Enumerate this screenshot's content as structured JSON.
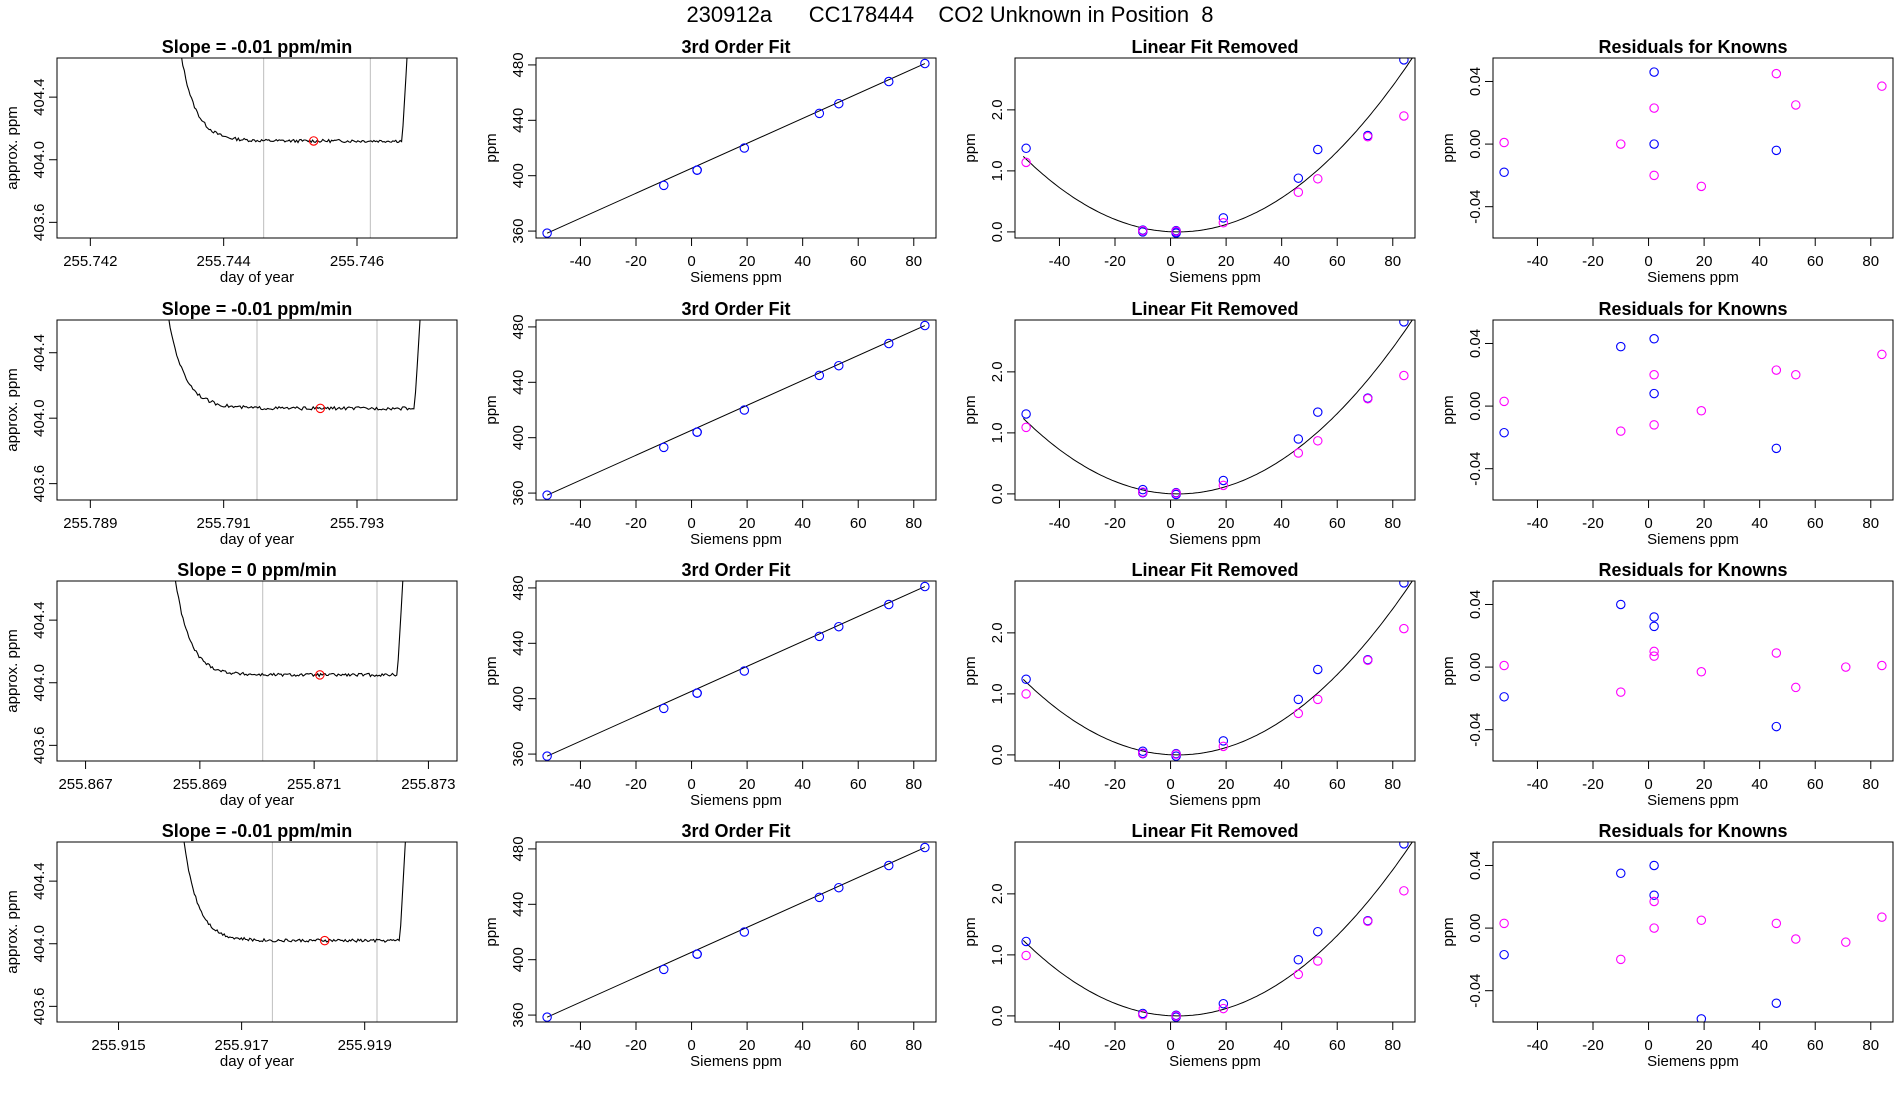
{
  "page": {
    "title": "230912a      CC178444    CO2 Unknown in Position  8"
  },
  "colors": {
    "line": "#000000",
    "known": "#0000ff",
    "unknown": "#ff00ff",
    "mean": "#ff0000",
    "bound": "#bebebe"
  },
  "chart_data": [
    {
      "type": "line",
      "title": "Slope =  -0.01  ppm/min",
      "xlabel": "day of year",
      "ylabel": "approx. ppm",
      "xlim": [
        255.7415,
        255.7475
      ],
      "ylim": [
        403.5,
        404.65
      ],
      "xticks": [
        "255.742",
        "255.744",
        "255.746"
      ],
      "yticks": [
        "403.6",
        "404.0",
        "404.4"
      ],
      "vlines": [
        255.7446,
        255.7462
      ],
      "mean_point": [
        255.74535,
        404.12
      ],
      "trace": {
        "start": 255.7433,
        "end": 255.7468,
        "plateau": 404.12,
        "start_value": 404.65
      }
    },
    {
      "type": "scatter",
      "title": "3rd Order Fit",
      "xlabel": "Siemens ppm",
      "ylabel": "ppm",
      "xlim": [
        -56,
        88
      ],
      "ylim": [
        355,
        485
      ],
      "xticks": [
        "-40",
        "-20",
        "0",
        "20",
        "40",
        "60",
        "80"
      ],
      "yticks": [
        "360",
        "400",
        "440",
        "480"
      ],
      "points_x": [
        -52,
        -10,
        2,
        2,
        19,
        46,
        53,
        71,
        84
      ],
      "points_y": [
        358.5,
        393,
        404,
        404,
        420,
        445,
        452,
        468,
        481
      ],
      "fit_line": [
        [
          -52,
          358.5
        ],
        [
          84,
          481
        ]
      ]
    },
    {
      "type": "scatter",
      "title": "Linear Fit Removed",
      "xlabel": "Siemens ppm",
      "ylabel": "ppm",
      "xlim": [
        -56,
        88
      ],
      "ylim": [
        -0.1,
        2.85
      ],
      "xticks": [
        "-40",
        "-20",
        "0",
        "20",
        "40",
        "60",
        "80"
      ],
      "yticks": [
        "0.0",
        "1.0",
        "2.0"
      ],
      "knowns_x": [
        -52,
        -10,
        -10,
        2,
        2,
        2,
        19,
        46,
        53,
        71,
        84
      ],
      "knowns_y": [
        1.37,
        0.03,
        0.0,
        0.02,
        0.0,
        -0.02,
        0.23,
        0.88,
        1.35,
        1.58,
        2.82
      ],
      "unknowns_x": [
        -52,
        -10,
        2,
        19,
        46,
        53,
        71,
        84
      ],
      "unknowns_y": [
        1.14,
        0.02,
        0.01,
        0.15,
        0.65,
        0.87,
        1.56,
        1.9
      ],
      "curve": {
        "a": 0.0004,
        "b": -0.0005,
        "c": 0.0
      }
    },
    {
      "type": "scatter",
      "title": "Residuals for Knowns",
      "xlabel": "Siemens ppm",
      "ylabel": "ppm",
      "xlim": [
        -56,
        88
      ],
      "ylim": [
        -0.06,
        0.055
      ],
      "xticks": [
        "-40",
        "-20",
        "0",
        "20",
        "40",
        "60",
        "80"
      ],
      "yticks": [
        "-0.04",
        "0.00",
        "0.04"
      ],
      "knowns_x": [
        -52,
        2,
        2,
        46
      ],
      "knowns_y": [
        -0.018,
        0.046,
        0.0,
        -0.004
      ],
      "unknowns_x": [
        -52,
        -10,
        2,
        2,
        19,
        46,
        53,
        84
      ],
      "unknowns_y": [
        0.001,
        0.0,
        0.023,
        -0.02,
        -0.027,
        0.045,
        0.025,
        0.037
      ]
    },
    {
      "type": "line",
      "title": "Slope =  -0.01  ppm/min",
      "xlabel": "day of year",
      "ylabel": "approx. ppm",
      "xlim": [
        255.7885,
        255.7945
      ],
      "ylim": [
        403.5,
        404.6
      ],
      "xticks": [
        "255.789",
        "255.791",
        "255.793"
      ],
      "yticks": [
        "403.6",
        "404.0",
        "404.4"
      ],
      "vlines": [
        255.7915,
        255.7933
      ],
      "mean_point": [
        255.79245,
        404.06
      ],
      "trace": {
        "start": 255.7901,
        "end": 255.794,
        "plateau": 404.06,
        "start_value": 404.6
      }
    },
    {
      "type": "scatter",
      "title": "3rd Order Fit",
      "xlabel": "Siemens ppm",
      "ylabel": "ppm",
      "xlim": [
        -56,
        88
      ],
      "ylim": [
        355,
        485
      ],
      "xticks": [
        "-40",
        "-20",
        "0",
        "20",
        "40",
        "60",
        "80"
      ],
      "yticks": [
        "360",
        "400",
        "440",
        "480"
      ],
      "points_x": [
        -52,
        -10,
        2,
        2,
        19,
        46,
        53,
        71,
        84
      ],
      "points_y": [
        358.5,
        393,
        404,
        404,
        420,
        445,
        452,
        468,
        481
      ],
      "fit_line": [
        [
          -52,
          358.5
        ],
        [
          84,
          481
        ]
      ]
    },
    {
      "type": "scatter",
      "title": "Linear Fit Removed",
      "xlabel": "Siemens ppm",
      "ylabel": "ppm",
      "xlim": [
        -56,
        88
      ],
      "ylim": [
        -0.1,
        2.85
      ],
      "xticks": [
        "-40",
        "-20",
        "0",
        "20",
        "40",
        "60",
        "80"
      ],
      "yticks": [
        "0.0",
        "1.0",
        "2.0"
      ],
      "knowns_x": [
        -52,
        -10,
        -10,
        2,
        2,
        19,
        46,
        53,
        71,
        84
      ],
      "knowns_y": [
        1.31,
        0.07,
        0.02,
        0.02,
        -0.01,
        0.22,
        0.9,
        1.34,
        1.57,
        2.82
      ],
      "unknowns_x": [
        -52,
        -10,
        2,
        19,
        46,
        53,
        71,
        84
      ],
      "unknowns_y": [
        1.09,
        0.03,
        0.01,
        0.14,
        0.67,
        0.87,
        1.56,
        1.94
      ],
      "curve": {
        "a": 0.0004,
        "b": -0.0005,
        "c": 0.0
      }
    },
    {
      "type": "scatter",
      "title": "Residuals for Knowns",
      "xlabel": "Siemens ppm",
      "ylabel": "ppm",
      "xlim": [
        -56,
        88
      ],
      "ylim": [
        -0.06,
        0.055
      ],
      "xticks": [
        "-40",
        "-20",
        "0",
        "20",
        "40",
        "60",
        "80"
      ],
      "yticks": [
        "-0.04",
        "0.00",
        "0.04"
      ],
      "knowns_x": [
        -52,
        -10,
        2,
        2,
        46
      ],
      "knowns_y": [
        -0.017,
        0.038,
        0.043,
        0.008,
        -0.027
      ],
      "unknowns_x": [
        -52,
        -10,
        2,
        2,
        19,
        46,
        53,
        84
      ],
      "unknowns_y": [
        0.003,
        -0.016,
        0.02,
        -0.012,
        -0.003,
        0.023,
        0.02,
        0.033
      ]
    },
    {
      "type": "line",
      "title": "Slope =  0  ppm/min",
      "xlabel": "day of year",
      "ylabel": "approx. ppm",
      "xlim": [
        255.8665,
        255.8735
      ],
      "ylim": [
        403.5,
        404.65
      ],
      "xticks": [
        "255.867",
        "255.869",
        "255.871",
        "255.873"
      ],
      "yticks": [
        "403.6",
        "404.0",
        "404.4"
      ],
      "vlines": [
        255.8701,
        255.8721
      ],
      "mean_point": [
        255.8711,
        404.05
      ],
      "trace": {
        "start": 255.8685,
        "end": 255.8726,
        "plateau": 404.05,
        "start_value": 404.65
      }
    },
    {
      "type": "scatter",
      "title": "3rd Order Fit",
      "xlabel": "Siemens ppm",
      "ylabel": "ppm",
      "xlim": [
        -56,
        88
      ],
      "ylim": [
        355,
        485
      ],
      "xticks": [
        "-40",
        "-20",
        "0",
        "20",
        "40",
        "60",
        "80"
      ],
      "yticks": [
        "360",
        "400",
        "440",
        "480"
      ],
      "points_x": [
        -52,
        -10,
        2,
        2,
        19,
        46,
        53,
        71,
        84
      ],
      "points_y": [
        358.5,
        393,
        404,
        404,
        420,
        445,
        452,
        468,
        481
      ],
      "fit_line": [
        [
          -52,
          358.5
        ],
        [
          84,
          481
        ]
      ]
    },
    {
      "type": "scatter",
      "title": "Linear Fit Removed",
      "xlabel": "Siemens ppm",
      "ylabel": "ppm",
      "xlim": [
        -56,
        88
      ],
      "ylim": [
        -0.1,
        2.85
      ],
      "xticks": [
        "-40",
        "-20",
        "0",
        "20",
        "40",
        "60",
        "80"
      ],
      "yticks": [
        "0.0",
        "1.0",
        "2.0"
      ],
      "knowns_x": [
        -52,
        -10,
        -10,
        2,
        2,
        19,
        46,
        53,
        71,
        84
      ],
      "knowns_y": [
        1.24,
        0.06,
        0.02,
        0.02,
        -0.02,
        0.23,
        0.91,
        1.4,
        1.56,
        2.82
      ],
      "unknowns_x": [
        -52,
        -10,
        2,
        19,
        46,
        53,
        71,
        84
      ],
      "unknowns_y": [
        1.0,
        0.03,
        0.01,
        0.14,
        0.68,
        0.91,
        1.55,
        2.07
      ],
      "curve": {
        "a": 0.0004,
        "b": -0.0005,
        "c": 0.0
      }
    },
    {
      "type": "scatter",
      "title": "Residuals for Knowns",
      "xlabel": "Siemens ppm",
      "ylabel": "ppm",
      "xlim": [
        -56,
        88
      ],
      "ylim": [
        -0.06,
        0.055
      ],
      "xticks": [
        "-40",
        "-20",
        "0",
        "20",
        "40",
        "60",
        "80"
      ],
      "yticks": [
        "-0.04",
        "0.00",
        "0.04"
      ],
      "knowns_x": [
        -52,
        -10,
        2,
        2,
        46
      ],
      "knowns_y": [
        -0.019,
        0.04,
        0.032,
        0.026,
        -0.038
      ],
      "unknowns_x": [
        -52,
        -10,
        2,
        2,
        19,
        46,
        53,
        71,
        84
      ],
      "unknowns_y": [
        0.001,
        -0.016,
        0.01,
        0.007,
        -0.003,
        0.009,
        -0.013,
        0.0,
        0.001
      ]
    },
    {
      "type": "line",
      "title": "Slope =  -0.01  ppm/min",
      "xlabel": "day of year",
      "ylabel": "approx. ppm",
      "xlim": [
        255.914,
        255.9205
      ],
      "ylim": [
        403.5,
        404.65
      ],
      "xticks": [
        "255.915",
        "255.917",
        "255.919"
      ],
      "yticks": [
        "403.6",
        "404.0",
        "404.4"
      ],
      "vlines": [
        255.9175,
        255.9192
      ],
      "mean_point": [
        255.91835,
        404.02
      ],
      "trace": {
        "start": 255.916,
        "end": 255.9197,
        "plateau": 404.02,
        "start_value": 404.65
      }
    },
    {
      "type": "scatter",
      "title": "3rd Order Fit",
      "xlabel": "Siemens ppm",
      "ylabel": "ppm",
      "xlim": [
        -56,
        88
      ],
      "ylim": [
        355,
        485
      ],
      "xticks": [
        "-40",
        "-20",
        "0",
        "20",
        "40",
        "60",
        "80"
      ],
      "yticks": [
        "360",
        "400",
        "440",
        "480"
      ],
      "points_x": [
        -52,
        -10,
        2,
        2,
        19,
        46,
        53,
        71,
        84
      ],
      "points_y": [
        358.5,
        393,
        404,
        404,
        420,
        445,
        452,
        468,
        481
      ],
      "fit_line": [
        [
          -52,
          358.5
        ],
        [
          84,
          481
        ]
      ]
    },
    {
      "type": "scatter",
      "title": "Linear Fit Removed",
      "xlabel": "Siemens ppm",
      "ylabel": "ppm",
      "xlim": [
        -56,
        88
      ],
      "ylim": [
        -0.1,
        2.85
      ],
      "xticks": [
        "-40",
        "-20",
        "0",
        "20",
        "40",
        "60",
        "80"
      ],
      "yticks": [
        "0.0",
        "1.0",
        "2.0"
      ],
      "knowns_x": [
        -52,
        -10,
        2,
        2,
        19,
        46,
        53,
        71,
        84
      ],
      "knowns_y": [
        1.22,
        0.04,
        0.01,
        -0.02,
        0.2,
        0.92,
        1.38,
        1.56,
        2.82
      ],
      "unknowns_x": [
        -52,
        -10,
        2,
        19,
        46,
        53,
        71,
        84
      ],
      "unknowns_y": [
        0.99,
        0.02,
        0.0,
        0.12,
        0.68,
        0.9,
        1.55,
        2.05
      ],
      "curve": {
        "a": 0.0004,
        "b": -0.0005,
        "c": 0.0
      }
    },
    {
      "type": "scatter",
      "title": "Residuals for Knowns",
      "xlabel": "Siemens ppm",
      "ylabel": "ppm",
      "xlim": [
        -56,
        88
      ],
      "ylim": [
        -0.06,
        0.055
      ],
      "xticks": [
        "-40",
        "-20",
        "0",
        "20",
        "40",
        "60",
        "80"
      ],
      "yticks": [
        "-0.04",
        "0.00",
        "0.04"
      ],
      "knowns_x": [
        -52,
        -10,
        2,
        2,
        19,
        46
      ],
      "knowns_y": [
        -0.017,
        0.035,
        0.04,
        0.021,
        -0.058,
        -0.048
      ],
      "unknowns_x": [
        -52,
        -10,
        2,
        2,
        19,
        46,
        53,
        71,
        84
      ],
      "unknowns_y": [
        0.003,
        -0.02,
        0.017,
        0.0,
        0.005,
        0.003,
        -0.007,
        -0.009,
        0.007
      ]
    }
  ]
}
